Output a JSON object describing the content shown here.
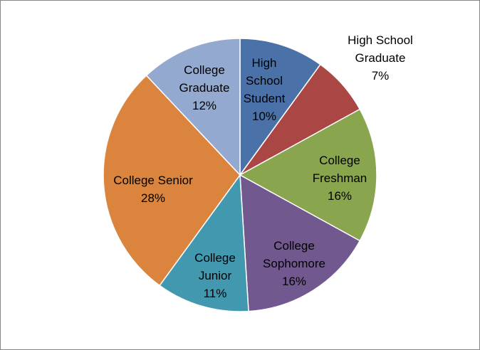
{
  "chart_data": {
    "type": "pie",
    "title": "",
    "slices": [
      {
        "label": "High School Student",
        "value": 10,
        "pct_text": "10%",
        "color": "#4A72A8",
        "label_lines": [
          "High",
          "School",
          "Student",
          "10%"
        ]
      },
      {
        "label": "High School Graduate",
        "value": 7,
        "pct_text": "7%",
        "color": "#AA4643",
        "label_lines": [
          "High School",
          "Graduate",
          "7%"
        ]
      },
      {
        "label": "College Freshman",
        "value": 16,
        "pct_text": "16%",
        "color": "#89A54E",
        "label_lines": [
          "College",
          "Freshman",
          "16%"
        ]
      },
      {
        "label": "College Sophomore",
        "value": 16,
        "pct_text": "16%",
        "color": "#71588F",
        "label_lines": [
          "College",
          "Sophomore",
          "16%"
        ]
      },
      {
        "label": "College Junior",
        "value": 11,
        "pct_text": "11%",
        "color": "#4198AF",
        "label_lines": [
          "College",
          "Junior",
          "11%"
        ]
      },
      {
        "label": "College Senior",
        "value": 28,
        "pct_text": "28%",
        "color": "#DB843D",
        "label_lines": [
          "College Senior",
          "28%"
        ]
      },
      {
        "label": "College Graduate",
        "value": 12,
        "pct_text": "12%",
        "color": "#93A9CF",
        "label_lines": [
          "College",
          "Graduate",
          "12%"
        ]
      }
    ],
    "start_angle_deg": 0,
    "direction": "clockwise",
    "legend": "none",
    "slice_border_color": "#ffffff"
  }
}
